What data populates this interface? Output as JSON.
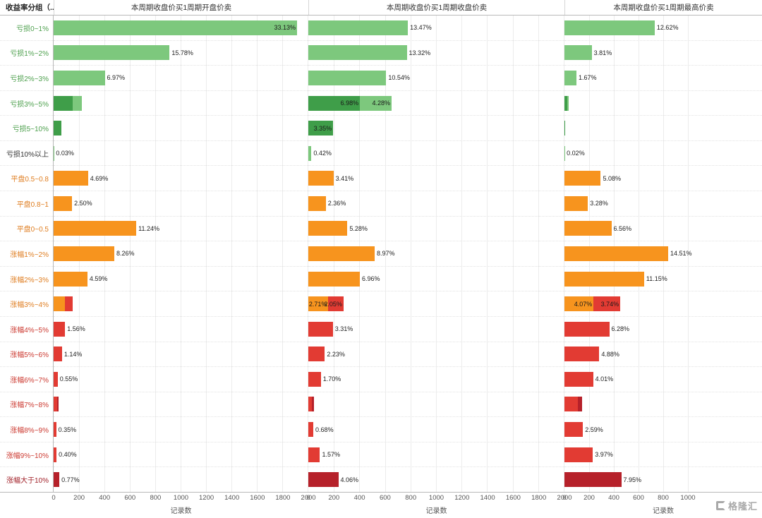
{
  "header": {
    "row_group_label": "收益率分组（.."
  },
  "watermark": {
    "text": "格隆汇"
  },
  "colors": {
    "green": "#7dc87d",
    "darkgreen": "#3f9e49",
    "orange": "#f7941e",
    "red": "#e23b33",
    "darkred": "#b6212a"
  },
  "label_colors": {
    "green": "#4ea04e",
    "dark": "#333333",
    "orange": "#df7d20",
    "red": "#cc3a31",
    "darkred": "#a2222a"
  },
  "chart_data": {
    "type": "bar",
    "orientation": "horizontal",
    "xlabel": "记录数",
    "categories": [
      {
        "label": "亏损0~1%",
        "color": "green"
      },
      {
        "label": "亏损1%~2%",
        "color": "green"
      },
      {
        "label": "亏损2%~3%",
        "color": "green"
      },
      {
        "label": "亏损3%~5%",
        "color": "green"
      },
      {
        "label": "亏损5~10%",
        "color": "green"
      },
      {
        "label": "亏损10%以上",
        "color": "dark"
      },
      {
        "label": "平盘0.5~0.8",
        "color": "orange"
      },
      {
        "label": "平盘0.8~1",
        "color": "orange"
      },
      {
        "label": "平盘0~0.5",
        "color": "orange"
      },
      {
        "label": "涨幅1%~2%",
        "color": "orange"
      },
      {
        "label": "涨幅2%~3%",
        "color": "orange"
      },
      {
        "label": "涨幅3%~4%",
        "color": "orange"
      },
      {
        "label": "涨幅4%~5%",
        "color": "red"
      },
      {
        "label": "涨幅5%~6%",
        "color": "red"
      },
      {
        "label": "涨幅6%~7%",
        "color": "red"
      },
      {
        "label": "涨幅7%~8%",
        "color": "red"
      },
      {
        "label": "涨幅8%~9%",
        "color": "red"
      },
      {
        "label": "涨幅9%~10%",
        "color": "red"
      },
      {
        "label": "涨幅大于10%",
        "color": "darkred"
      }
    ],
    "panels": [
      {
        "title": "本周期收盘价买1周期开盘价卖",
        "axis": {
          "min": 0,
          "max": 2000,
          "ticks": [
            0,
            200,
            400,
            600,
            800,
            1000,
            1200,
            1400,
            1600,
            1800,
            2000
          ]
        },
        "rows": [
          [
            {
              "count": 1917,
              "color": "green",
              "pct": "33.13%",
              "inside": true
            }
          ],
          [
            {
              "count": 913,
              "color": "green",
              "pct": "15.78%"
            }
          ],
          [
            {
              "count": 403,
              "color": "green",
              "pct": "6.97%"
            }
          ],
          [
            {
              "count": 150,
              "color": "darkgreen"
            },
            {
              "count": 70,
              "color": "green"
            }
          ],
          [
            {
              "count": 60,
              "color": "darkgreen"
            }
          ],
          [
            {
              "count": 2,
              "color": "green",
              "pct": "0.03%"
            }
          ],
          [
            {
              "count": 271,
              "color": "orange",
              "pct": "4.69%"
            }
          ],
          [
            {
              "count": 145,
              "color": "orange",
              "pct": "2.50%"
            }
          ],
          [
            {
              "count": 651,
              "color": "orange",
              "pct": "11.24%"
            }
          ],
          [
            {
              "count": 478,
              "color": "orange",
              "pct": "8.26%"
            }
          ],
          [
            {
              "count": 266,
              "color": "orange",
              "pct": "4.59%"
            }
          ],
          [
            {
              "count": 90,
              "color": "orange"
            },
            {
              "count": 60,
              "color": "red"
            }
          ],
          [
            {
              "count": 90,
              "color": "red",
              "pct": "1.56%"
            }
          ],
          [
            {
              "count": 66,
              "color": "red",
              "pct": "1.14%"
            }
          ],
          [
            {
              "count": 32,
              "color": "red",
              "pct": "0.55%"
            }
          ],
          [
            {
              "count": 25,
              "color": "red"
            },
            {
              "count": 12,
              "color": "darkred"
            }
          ],
          [
            {
              "count": 20,
              "color": "red",
              "pct": "0.35%"
            }
          ],
          [
            {
              "count": 23,
              "color": "red",
              "pct": "0.40%"
            }
          ],
          [
            {
              "count": 45,
              "color": "darkred",
              "pct": "0.77%"
            }
          ]
        ]
      },
      {
        "title": "本周期收盘价买1周期收盘价卖",
        "axis": {
          "min": 0,
          "max": 2000,
          "ticks": [
            0,
            200,
            400,
            600,
            800,
            1000,
            1200,
            1400,
            1600,
            1800,
            2000
          ]
        },
        "rows": [
          [
            {
              "count": 780,
              "color": "green",
              "pct": "13.47%"
            }
          ],
          [
            {
              "count": 771,
              "color": "green",
              "pct": "13.32%"
            }
          ],
          [
            {
              "count": 610,
              "color": "green",
              "pct": "10.54%"
            }
          ],
          [
            {
              "count": 404,
              "color": "darkgreen",
              "pct": "6.98%",
              "inside": true
            },
            {
              "count": 248,
              "color": "green",
              "pct": "4.28%",
              "inside": true
            }
          ],
          [
            {
              "count": 194,
              "color": "darkgreen",
              "pct": "3.35%",
              "inside": true
            }
          ],
          [
            {
              "count": 24,
              "color": "green",
              "pct": "0.42%"
            }
          ],
          [
            {
              "count": 197,
              "color": "orange",
              "pct": "3.41%"
            }
          ],
          [
            {
              "count": 137,
              "color": "orange",
              "pct": "2.36%"
            }
          ],
          [
            {
              "count": 306,
              "color": "orange",
              "pct": "5.28%"
            }
          ],
          [
            {
              "count": 519,
              "color": "orange",
              "pct": "8.97%"
            }
          ],
          [
            {
              "count": 403,
              "color": "orange",
              "pct": "6.96%"
            }
          ],
          [
            {
              "count": 157,
              "color": "orange",
              "pct": "2.71%",
              "inside": true
            },
            {
              "count": 119,
              "color": "red",
              "pct": "2.05%",
              "inside": true
            }
          ],
          [
            {
              "count": 192,
              "color": "red",
              "pct": "3.31%"
            }
          ],
          [
            {
              "count": 129,
              "color": "red",
              "pct": "2.23%"
            }
          ],
          [
            {
              "count": 98,
              "color": "red",
              "pct": "1.70%"
            }
          ],
          [
            {
              "count": 30,
              "color": "red"
            },
            {
              "count": 15,
              "color": "darkred"
            }
          ],
          [
            {
              "count": 39,
              "color": "red",
              "pct": "0.68%"
            }
          ],
          [
            {
              "count": 91,
              "color": "red",
              "pct": "1.57%"
            }
          ],
          [
            {
              "count": 235,
              "color": "darkred",
              "pct": "4.06%"
            }
          ]
        ]
      },
      {
        "title": "本周期收盘价买1周期最高价卖",
        "axis": {
          "min": 0,
          "max": 1600,
          "ticks": [
            0,
            200,
            400,
            600,
            800,
            1000
          ]
        },
        "rows": [
          [
            {
              "count": 731,
              "color": "green",
              "pct": "12.62%"
            }
          ],
          [
            {
              "count": 221,
              "color": "green",
              "pct": "3.81%"
            }
          ],
          [
            {
              "count": 97,
              "color": "green",
              "pct": "1.67%"
            }
          ],
          [
            {
              "count": 20,
              "color": "darkgreen"
            },
            {
              "count": 16,
              "color": "green"
            }
          ],
          [
            {
              "count": 8,
              "color": "darkgreen"
            }
          ],
          [
            {
              "count": 1,
              "color": "green",
              "pct": "0.02%"
            }
          ],
          [
            {
              "count": 294,
              "color": "orange",
              "pct": "5.08%"
            }
          ],
          [
            {
              "count": 190,
              "color": "orange",
              "pct": "3.28%"
            }
          ],
          [
            {
              "count": 380,
              "color": "orange",
              "pct": "6.56%"
            }
          ],
          [
            {
              "count": 840,
              "color": "orange",
              "pct": "14.51%"
            }
          ],
          [
            {
              "count": 645,
              "color": "orange",
              "pct": "11.15%"
            }
          ],
          [
            {
              "count": 236,
              "color": "orange",
              "pct": "4.07%",
              "inside": true
            },
            {
              "count": 216,
              "color": "red",
              "pct": "3.74%",
              "inside": true
            }
          ],
          [
            {
              "count": 363,
              "color": "red",
              "pct": "6.28%"
            }
          ],
          [
            {
              "count": 282,
              "color": "red",
              "pct": "4.88%"
            }
          ],
          [
            {
              "count": 232,
              "color": "red",
              "pct": "4.01%"
            }
          ],
          [
            {
              "count": 110,
              "color": "red"
            },
            {
              "count": 35,
              "color": "darkred"
            }
          ],
          [
            {
              "count": 150,
              "color": "red",
              "pct": "2.59%"
            }
          ],
          [
            {
              "count": 230,
              "color": "red",
              "pct": "3.97%"
            }
          ],
          [
            {
              "count": 460,
              "color": "darkred",
              "pct": "7.95%"
            }
          ]
        ]
      }
    ]
  }
}
